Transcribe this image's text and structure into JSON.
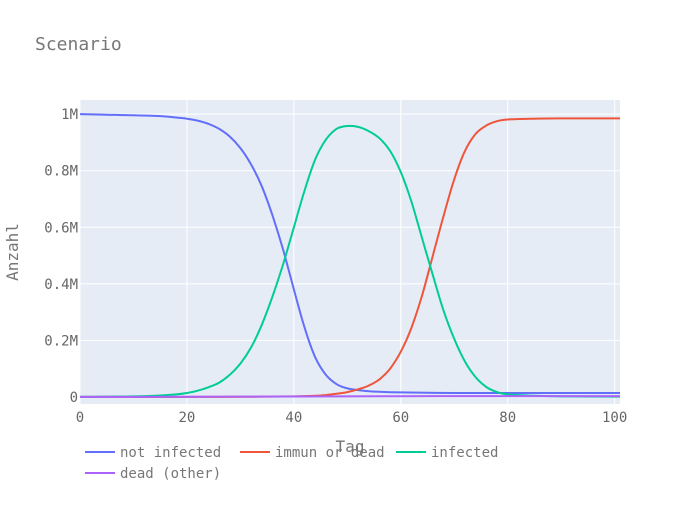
{
  "chart_data": {
    "type": "line",
    "title": "Scenario",
    "xlabel": "Tag",
    "ylabel": "Anzahl",
    "xlim": [
      0,
      101
    ],
    "ylim": [
      -25000,
      1050000
    ],
    "xticks": [
      0,
      20,
      40,
      60,
      80,
      100
    ],
    "xtick_labels": [
      "0",
      "20",
      "40",
      "60",
      "80",
      "100"
    ],
    "yticks": [
      0,
      200000,
      400000,
      600000,
      800000,
      1000000
    ],
    "ytick_labels": [
      "0",
      "0.2M",
      "0.4M",
      "0.6M",
      "0.8M",
      "1M"
    ],
    "grid": true,
    "legend_position": "bottom",
    "background": "#e5ecf6",
    "series": [
      {
        "name": "not infected",
        "color": "#636efa",
        "points": [
          [
            0,
            1000000
          ],
          [
            5,
            998000
          ],
          [
            10,
            996000
          ],
          [
            15,
            993000
          ],
          [
            18,
            988000
          ],
          [
            20,
            984000
          ],
          [
            22,
            977000
          ],
          [
            24,
            966000
          ],
          [
            26,
            948000
          ],
          [
            28,
            921000
          ],
          [
            30,
            880000
          ],
          [
            32,
            822000
          ],
          [
            34,
            745000
          ],
          [
            36,
            642000
          ],
          [
            38,
            520000
          ],
          [
            40,
            380000
          ],
          [
            42,
            245000
          ],
          [
            44,
            140000
          ],
          [
            46,
            78000
          ],
          [
            48,
            45000
          ],
          [
            50,
            30000
          ],
          [
            52,
            24000
          ],
          [
            55,
            19000
          ],
          [
            60,
            16000
          ],
          [
            70,
            14000
          ],
          [
            80,
            14000
          ],
          [
            90,
            14000
          ],
          [
            101,
            14000
          ]
        ]
      },
      {
        "name": "immun or dead",
        "color": "#ef553b",
        "points": [
          [
            0,
            0
          ],
          [
            20,
            0
          ],
          [
            30,
            500
          ],
          [
            40,
            2000
          ],
          [
            44,
            4000
          ],
          [
            46,
            7000
          ],
          [
            48,
            11000
          ],
          [
            50,
            17000
          ],
          [
            52,
            27000
          ],
          [
            54,
            40000
          ],
          [
            56,
            62000
          ],
          [
            58,
            100000
          ],
          [
            60,
            160000
          ],
          [
            62,
            245000
          ],
          [
            64,
            360000
          ],
          [
            66,
            500000
          ],
          [
            68,
            640000
          ],
          [
            70,
            770000
          ],
          [
            72,
            870000
          ],
          [
            74,
            930000
          ],
          [
            76,
            960000
          ],
          [
            78,
            975000
          ],
          [
            80,
            981000
          ],
          [
            85,
            984000
          ],
          [
            90,
            985000
          ],
          [
            101,
            985000
          ]
        ]
      },
      {
        "name": "infected",
        "color": "#00cc96",
        "points": [
          [
            0,
            0
          ],
          [
            10,
            2000
          ],
          [
            15,
            5000
          ],
          [
            18,
            9000
          ],
          [
            20,
            14000
          ],
          [
            22,
            22000
          ],
          [
            24,
            34000
          ],
          [
            26,
            50000
          ],
          [
            28,
            78000
          ],
          [
            30,
            118000
          ],
          [
            32,
            175000
          ],
          [
            34,
            255000
          ],
          [
            36,
            355000
          ],
          [
            38,
            470000
          ],
          [
            40,
            600000
          ],
          [
            42,
            730000
          ],
          [
            44,
            840000
          ],
          [
            46,
            910000
          ],
          [
            48,
            948000
          ],
          [
            50,
            958000
          ],
          [
            52,
            955000
          ],
          [
            54,
            940000
          ],
          [
            56,
            915000
          ],
          [
            58,
            870000
          ],
          [
            60,
            795000
          ],
          [
            62,
            690000
          ],
          [
            64,
            560000
          ],
          [
            66,
            430000
          ],
          [
            68,
            305000
          ],
          [
            70,
            205000
          ],
          [
            72,
            125000
          ],
          [
            74,
            70000
          ],
          [
            76,
            35000
          ],
          [
            78,
            17000
          ],
          [
            80,
            9000
          ],
          [
            85,
            4000
          ],
          [
            90,
            2000
          ],
          [
            101,
            1000
          ]
        ]
      },
      {
        "name": "dead (other)",
        "color": "#ab63fa",
        "points": [
          [
            0,
            0
          ],
          [
            20,
            500
          ],
          [
            40,
            1500
          ],
          [
            60,
            2500
          ],
          [
            80,
            3000
          ],
          [
            101,
            3000
          ]
        ]
      }
    ]
  }
}
